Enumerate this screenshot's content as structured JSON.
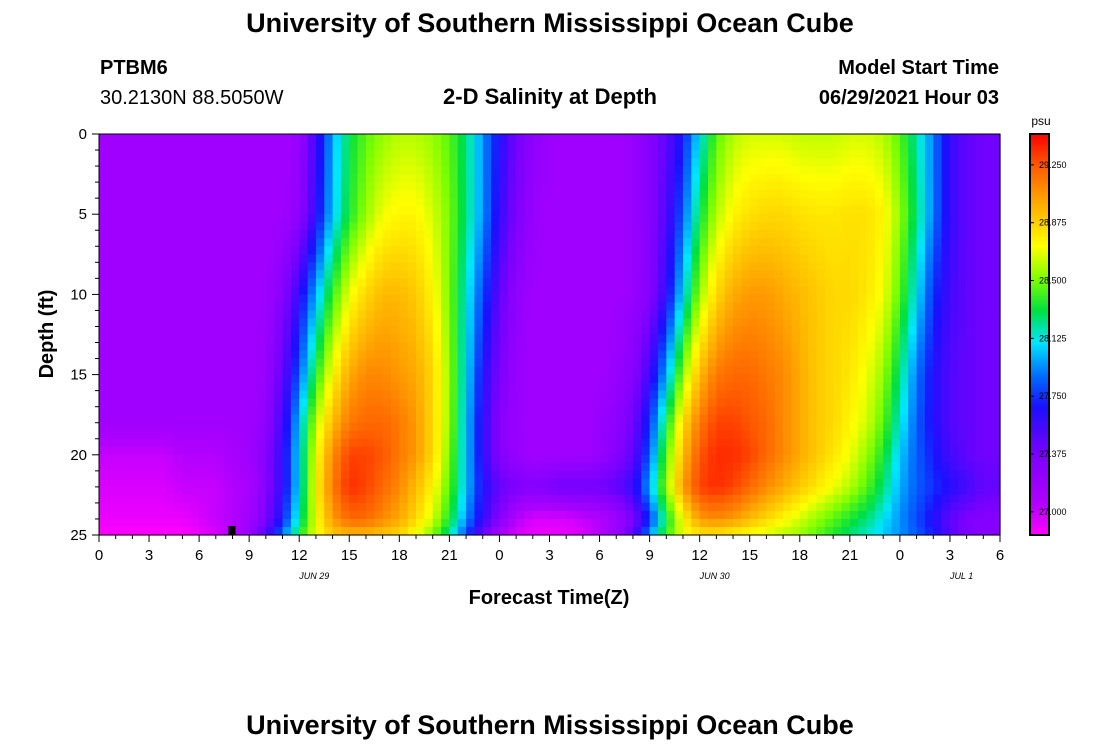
{
  "page": {
    "title_top": "University of Southern Mississippi Ocean Cube",
    "title_bottom": "University of Southern Mississippi Ocean Cube",
    "station_id": "PTBM6",
    "station_coords": "30.2130N  88.5050W",
    "plot_title": "2-D Salinity at Depth",
    "model_start_label": "Model Start Time",
    "model_start_value": "06/29/2021 Hour 03"
  },
  "chart_data": {
    "type": "heatmap",
    "title": "2-D Salinity at Depth",
    "xlabel": "Forecast Time(Z)",
    "ylabel": "Depth (ft)",
    "x_range_hours": [
      0,
      54
    ],
    "y_range_ft": [
      0,
      25
    ],
    "x_ticks": [
      {
        "h": 0,
        "label": "0"
      },
      {
        "h": 3,
        "label": "3"
      },
      {
        "h": 6,
        "label": "6"
      },
      {
        "h": 9,
        "label": "9"
      },
      {
        "h": 12,
        "label": "12"
      },
      {
        "h": 15,
        "label": "15"
      },
      {
        "h": 18,
        "label": "18"
      },
      {
        "h": 21,
        "label": "21"
      },
      {
        "h": 24,
        "label": "0"
      },
      {
        "h": 27,
        "label": "3"
      },
      {
        "h": 30,
        "label": "6"
      },
      {
        "h": 33,
        "label": "9"
      },
      {
        "h": 36,
        "label": "12"
      },
      {
        "h": 39,
        "label": "15"
      },
      {
        "h": 42,
        "label": "18"
      },
      {
        "h": 45,
        "label": "21"
      },
      {
        "h": 48,
        "label": "0"
      },
      {
        "h": 51,
        "label": "3"
      },
      {
        "h": 54,
        "label": "6"
      }
    ],
    "date_labels": [
      {
        "h": 12,
        "label": "JUN 29"
      },
      {
        "h": 36,
        "label": "JUN 30"
      },
      {
        "h": 51,
        "label": "JUL 1"
      }
    ],
    "y_ticks": [
      {
        "v": 0,
        "label": "0"
      },
      {
        "v": 5,
        "label": "5"
      },
      {
        "v": 10,
        "label": "10"
      },
      {
        "v": 15,
        "label": "15"
      },
      {
        "v": 20,
        "label": "20"
      },
      {
        "v": 25,
        "label": "25"
      }
    ],
    "colorbar": {
      "unit": "psu",
      "min": 26.85,
      "max": 29.45,
      "ticks": [
        "27.000",
        "27.375",
        "27.750",
        "28.125",
        "28.500",
        "28.875",
        "29.250"
      ]
    },
    "marker": {
      "h": 8,
      "depth": 25
    },
    "grid_x_hours": [
      0,
      1,
      2,
      3,
      4,
      5,
      6,
      7,
      8,
      9,
      10,
      11,
      12,
      13,
      14,
      15,
      16,
      17,
      18,
      19,
      20,
      21,
      22,
      23,
      24,
      25,
      26,
      27,
      28,
      29,
      30,
      31,
      32,
      33,
      34,
      35,
      36,
      37,
      38,
      39,
      40,
      41,
      42,
      43,
      44,
      45,
      46,
      47,
      48,
      49,
      50,
      51,
      52,
      53,
      54
    ],
    "grid_y_depths": [
      0,
      5,
      10,
      15,
      18,
      20,
      22,
      24,
      25
    ],
    "salinity_psu": [
      [
        27.15,
        27.15,
        27.15,
        27.15,
        27.15,
        27.15,
        27.15,
        27.15,
        27.15,
        27.15,
        27.15,
        27.15,
        27.2,
        27.55,
        28.0,
        28.3,
        28.45,
        28.55,
        28.6,
        28.6,
        28.55,
        28.45,
        28.25,
        27.95,
        27.65,
        27.4,
        27.25,
        27.18,
        27.15,
        27.15,
        27.15,
        27.15,
        27.2,
        27.3,
        27.45,
        27.7,
        28.1,
        28.45,
        28.6,
        28.65,
        28.65,
        28.65,
        28.62,
        28.62,
        28.62,
        28.65,
        28.65,
        28.6,
        28.45,
        28.2,
        27.9,
        27.6,
        27.45,
        27.4,
        27.4
      ],
      [
        27.15,
        27.15,
        27.15,
        27.15,
        27.15,
        27.15,
        27.15,
        27.15,
        27.15,
        27.15,
        27.15,
        27.15,
        27.25,
        27.6,
        28.05,
        28.35,
        28.55,
        28.7,
        28.75,
        28.75,
        28.65,
        28.5,
        28.25,
        27.95,
        27.6,
        27.35,
        27.2,
        27.15,
        27.15,
        27.15,
        27.15,
        27.15,
        27.2,
        27.3,
        27.5,
        27.85,
        28.3,
        28.6,
        28.75,
        28.82,
        28.85,
        28.85,
        28.82,
        28.8,
        28.8,
        28.82,
        28.82,
        28.75,
        28.55,
        28.25,
        27.9,
        27.6,
        27.45,
        27.4,
        27.4
      ],
      [
        27.15,
        27.15,
        27.15,
        27.15,
        27.15,
        27.15,
        27.15,
        27.15,
        27.15,
        27.15,
        27.15,
        27.3,
        27.6,
        28.0,
        28.4,
        28.7,
        28.85,
        28.95,
        28.95,
        28.9,
        28.75,
        28.5,
        28.15,
        27.8,
        27.45,
        27.25,
        27.15,
        27.15,
        27.15,
        27.15,
        27.15,
        27.15,
        27.2,
        27.3,
        27.6,
        28.1,
        28.55,
        28.85,
        29.0,
        29.05,
        29.05,
        29.0,
        28.95,
        28.9,
        28.85,
        28.85,
        28.8,
        28.7,
        28.45,
        28.1,
        27.75,
        27.55,
        27.45,
        27.4,
        27.4
      ],
      [
        27.15,
        27.15,
        27.15,
        27.15,
        27.15,
        27.15,
        27.15,
        27.15,
        27.15,
        27.15,
        27.2,
        27.45,
        27.85,
        28.35,
        28.75,
        29.0,
        29.1,
        29.1,
        29.05,
        29.0,
        28.85,
        28.55,
        28.1,
        27.65,
        27.35,
        27.2,
        27.15,
        27.15,
        27.15,
        27.15,
        27.15,
        27.2,
        27.3,
        27.55,
        28.0,
        28.55,
        28.95,
        29.15,
        29.2,
        29.2,
        29.15,
        29.1,
        29.0,
        28.9,
        28.85,
        28.8,
        28.7,
        28.55,
        28.25,
        27.9,
        27.65,
        27.5,
        27.45,
        27.4,
        27.4
      ],
      [
        27.15,
        27.15,
        27.15,
        27.15,
        27.15,
        27.15,
        27.15,
        27.15,
        27.15,
        27.15,
        27.25,
        27.55,
        28.05,
        28.6,
        28.95,
        29.15,
        29.2,
        29.2,
        29.15,
        29.05,
        28.85,
        28.55,
        28.05,
        27.6,
        27.3,
        27.2,
        27.15,
        27.15,
        27.15,
        27.15,
        27.2,
        27.25,
        27.4,
        27.75,
        28.3,
        28.85,
        29.15,
        29.3,
        29.3,
        29.25,
        29.2,
        29.1,
        29.0,
        28.9,
        28.85,
        28.75,
        28.65,
        28.45,
        28.15,
        27.85,
        27.65,
        27.5,
        27.45,
        27.4,
        27.4
      ],
      [
        27.0,
        27.0,
        27.0,
        27.0,
        27.0,
        27.05,
        27.05,
        27.05,
        27.1,
        27.15,
        27.3,
        27.6,
        28.1,
        28.7,
        29.1,
        29.3,
        29.3,
        29.25,
        29.15,
        29.05,
        28.85,
        28.5,
        28.05,
        27.6,
        27.3,
        27.2,
        27.15,
        27.15,
        27.15,
        27.15,
        27.2,
        27.3,
        27.45,
        27.85,
        28.45,
        28.95,
        29.25,
        29.35,
        29.35,
        29.3,
        29.2,
        29.1,
        29.0,
        28.9,
        28.8,
        28.7,
        28.55,
        28.35,
        28.05,
        27.85,
        27.7,
        27.55,
        27.45,
        27.4,
        27.4
      ],
      [
        26.95,
        26.95,
        26.95,
        26.95,
        26.95,
        27.0,
        27.0,
        27.0,
        27.05,
        27.1,
        27.3,
        27.6,
        28.1,
        28.75,
        29.15,
        29.35,
        29.3,
        29.2,
        29.1,
        28.95,
        28.75,
        28.45,
        28.05,
        27.65,
        27.45,
        27.35,
        27.3,
        27.35,
        27.4,
        27.4,
        27.4,
        27.45,
        27.6,
        28.0,
        28.55,
        29.05,
        29.3,
        29.35,
        29.3,
        29.2,
        29.1,
        29.0,
        28.9,
        28.8,
        28.7,
        28.6,
        28.45,
        28.25,
        28.0,
        27.85,
        27.75,
        27.65,
        27.55,
        27.45,
        27.45
      ],
      [
        26.9,
        26.9,
        26.9,
        26.9,
        26.9,
        26.9,
        26.95,
        27.0,
        27.05,
        27.15,
        27.35,
        27.7,
        28.2,
        28.7,
        29.05,
        29.2,
        29.2,
        29.1,
        29.0,
        28.85,
        28.65,
        28.35,
        27.95,
        27.6,
        27.3,
        27.05,
        26.95,
        26.95,
        26.95,
        27.0,
        27.05,
        27.15,
        27.35,
        27.75,
        28.3,
        28.75,
        29.05,
        29.1,
        29.05,
        28.95,
        28.85,
        28.75,
        28.65,
        28.55,
        28.45,
        28.35,
        28.25,
        28.1,
        27.95,
        27.8,
        27.65,
        27.45,
        27.35,
        27.3,
        27.3
      ],
      [
        26.85,
        26.85,
        26.85,
        26.85,
        26.85,
        26.85,
        26.9,
        26.95,
        27.05,
        27.2,
        27.5,
        27.9,
        28.35,
        28.7,
        28.9,
        28.95,
        28.95,
        28.9,
        28.85,
        28.7,
        28.5,
        28.2,
        27.8,
        27.4,
        27.1,
        26.95,
        26.9,
        26.9,
        26.9,
        26.95,
        27.05,
        27.2,
        27.5,
        27.95,
        28.4,
        28.7,
        28.8,
        28.8,
        28.75,
        28.7,
        28.65,
        28.6,
        28.55,
        28.45,
        28.35,
        28.25,
        28.15,
        28.05,
        27.95,
        27.85,
        27.7,
        27.5,
        27.35,
        27.3,
        27.3
      ]
    ]
  }
}
